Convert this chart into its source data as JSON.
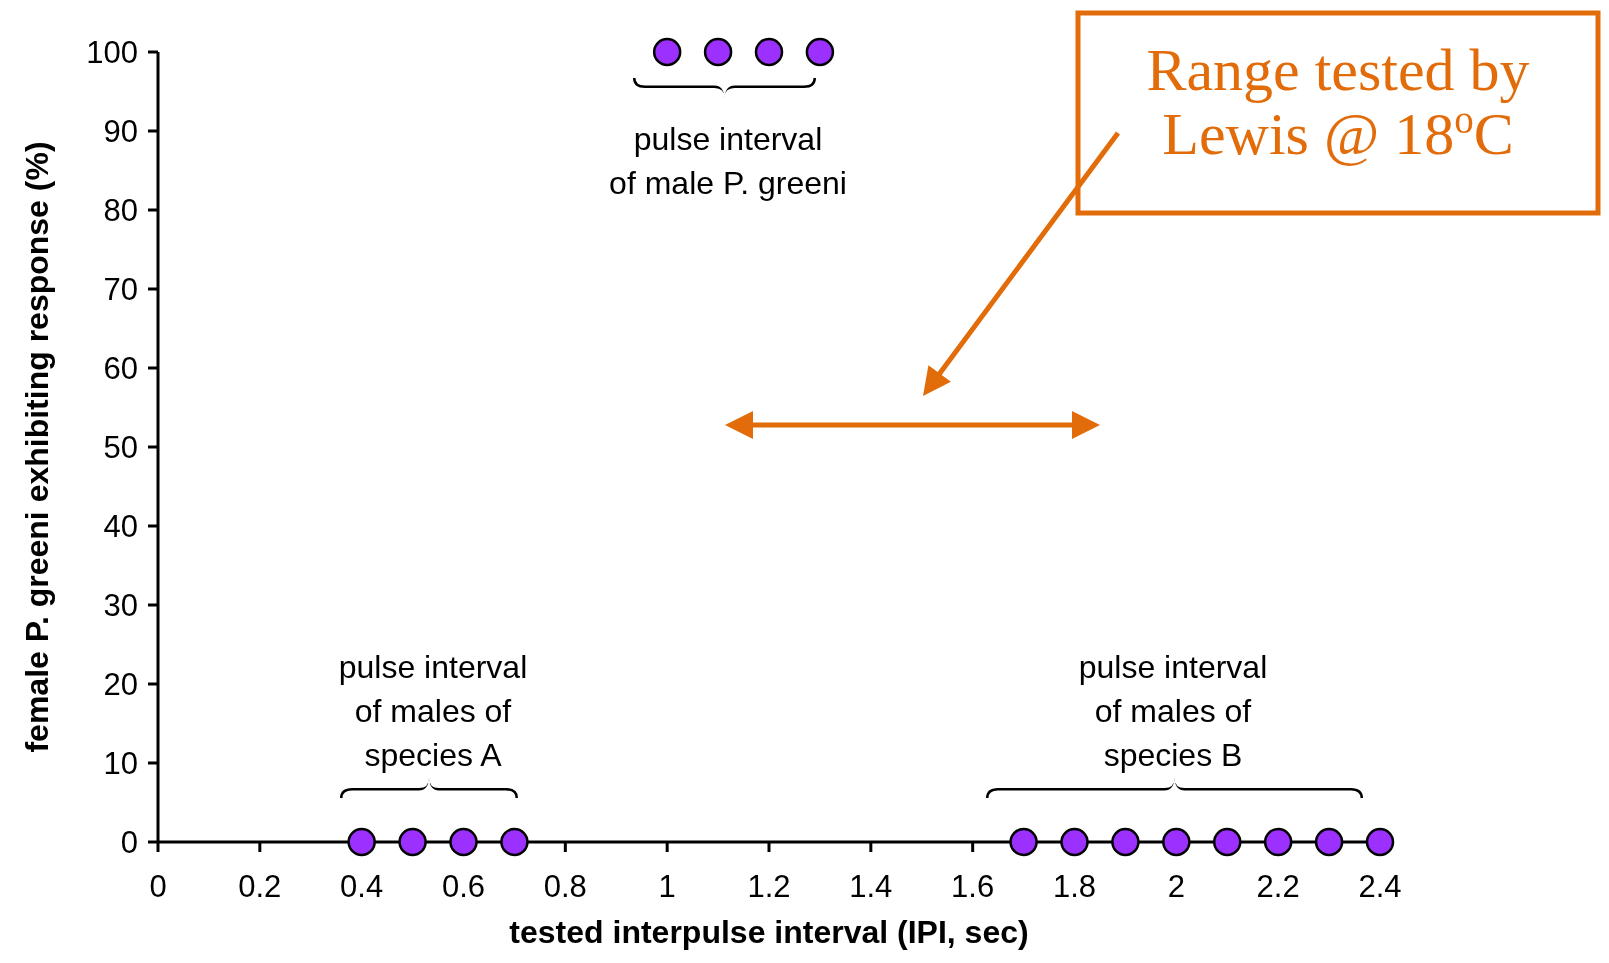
{
  "chart_data": {
    "type": "scatter",
    "xlabel": "tested interpulse interval (IPI, sec)",
    "ylabel": "female P. greeni exhibiting response (%)",
    "xlim": [
      0,
      2.4
    ],
    "ylim": [
      0,
      100
    ],
    "xticks": [
      0,
      0.2,
      0.4,
      0.6,
      0.8,
      1,
      1.2,
      1.4,
      1.6,
      1.8,
      2,
      2.2,
      2.4
    ],
    "yticks": [
      0,
      10,
      20,
      30,
      40,
      50,
      60,
      70,
      80,
      90,
      100
    ],
    "grid": false,
    "marker": "circle",
    "series": [
      {
        "color": "#9b30ff",
        "x": [
          0.4,
          0.5,
          0.6,
          0.7,
          1.0,
          1.1,
          1.2,
          1.3,
          1.7,
          1.8,
          1.9,
          2.0,
          2.1,
          2.2,
          2.3,
          2.4
        ],
        "values": [
          0,
          0,
          0,
          0,
          100,
          100,
          100,
          100,
          0,
          0,
          0,
          0,
          0,
          0,
          0,
          0
        ]
      }
    ],
    "annotations": [
      "pulse interval\nof male P. greeni",
      "pulse interval\nof males of\nspecies A",
      "pulse interval\nof males of\nspecies B",
      "Range tested by\nLewis @ 18$^{o}$C"
    ]
  }
}
